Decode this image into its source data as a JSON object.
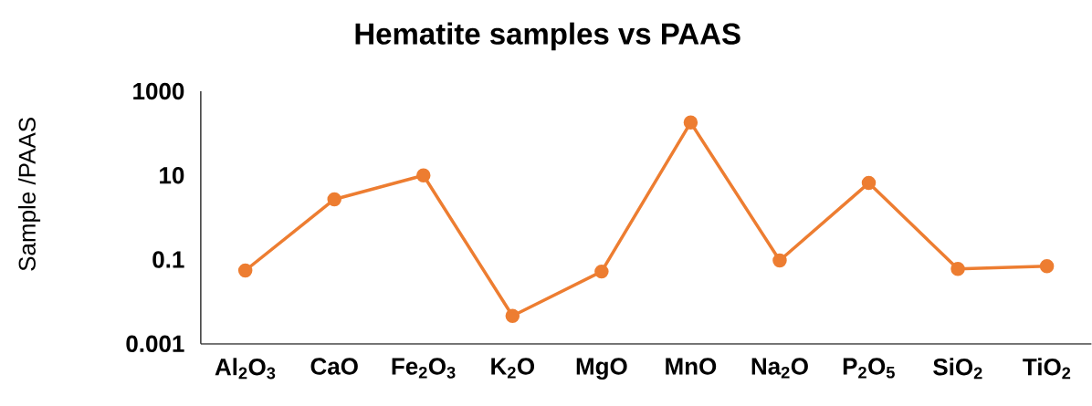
{
  "chart_data": {
    "type": "line",
    "title": "Hematite samples vs PAAS",
    "ylabel": "Sample /PAAS",
    "categories": [
      "Al$_{2}$O$_{3}$",
      "CaO",
      "Fe$_{2}$O$_{3}$",
      "K$_{2}$O",
      "MgO",
      "MnO",
      "Na$_{2}$O",
      "P$_{2}$O$_{5}$",
      "SiO$_{2}$",
      "TiO$_{2}$"
    ],
    "values": [
      0.055,
      2.7,
      10,
      0.0046,
      0.052,
      180,
      0.095,
      6.6,
      0.06,
      0.07
    ],
    "color": "#ed7d31",
    "ylim": [
      0.001,
      1000
    ],
    "yticks": [
      0.001,
      0.1,
      10,
      1000
    ],
    "log": true,
    "marker": "circle",
    "line_style": "solid"
  }
}
